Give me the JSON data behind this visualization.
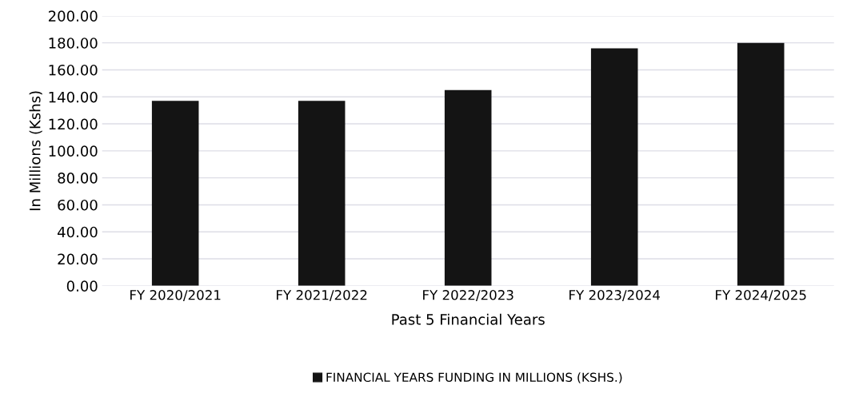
{
  "chart_data": {
    "type": "bar",
    "xlabel": "Past 5 Financial Years",
    "ylabel": "In Millions (Kshs)",
    "categories": [
      "FY 2020/2021",
      "FY 2021/2022",
      "FY 2022/2023",
      "FY 2023/2024",
      "FY 2024/2025"
    ],
    "series": [
      {
        "name": "FINANCIAL YEARS FUNDING IN MILLIONS (KSHS.)",
        "color": "#141414",
        "values": [
          137,
          137,
          145,
          176,
          180
        ]
      }
    ],
    "ylim": [
      0,
      200
    ],
    "yticks": [
      {
        "value": 0,
        "label": "0.00"
      },
      {
        "value": 20,
        "label": "20.00"
      },
      {
        "value": 40,
        "label": "40.00"
      },
      {
        "value": 60,
        "label": "60.00"
      },
      {
        "value": 80,
        "label": "80.00"
      },
      {
        "value": 100,
        "label": "100.00"
      },
      {
        "value": 120,
        "label": "120.00"
      },
      {
        "value": 140,
        "label": "140.00"
      },
      {
        "value": 160,
        "label": "160.00"
      },
      {
        "value": 180,
        "label": "180.00"
      },
      {
        "value": 200,
        "label": "200.00"
      }
    ],
    "grid": "y",
    "legend": "bottom"
  }
}
